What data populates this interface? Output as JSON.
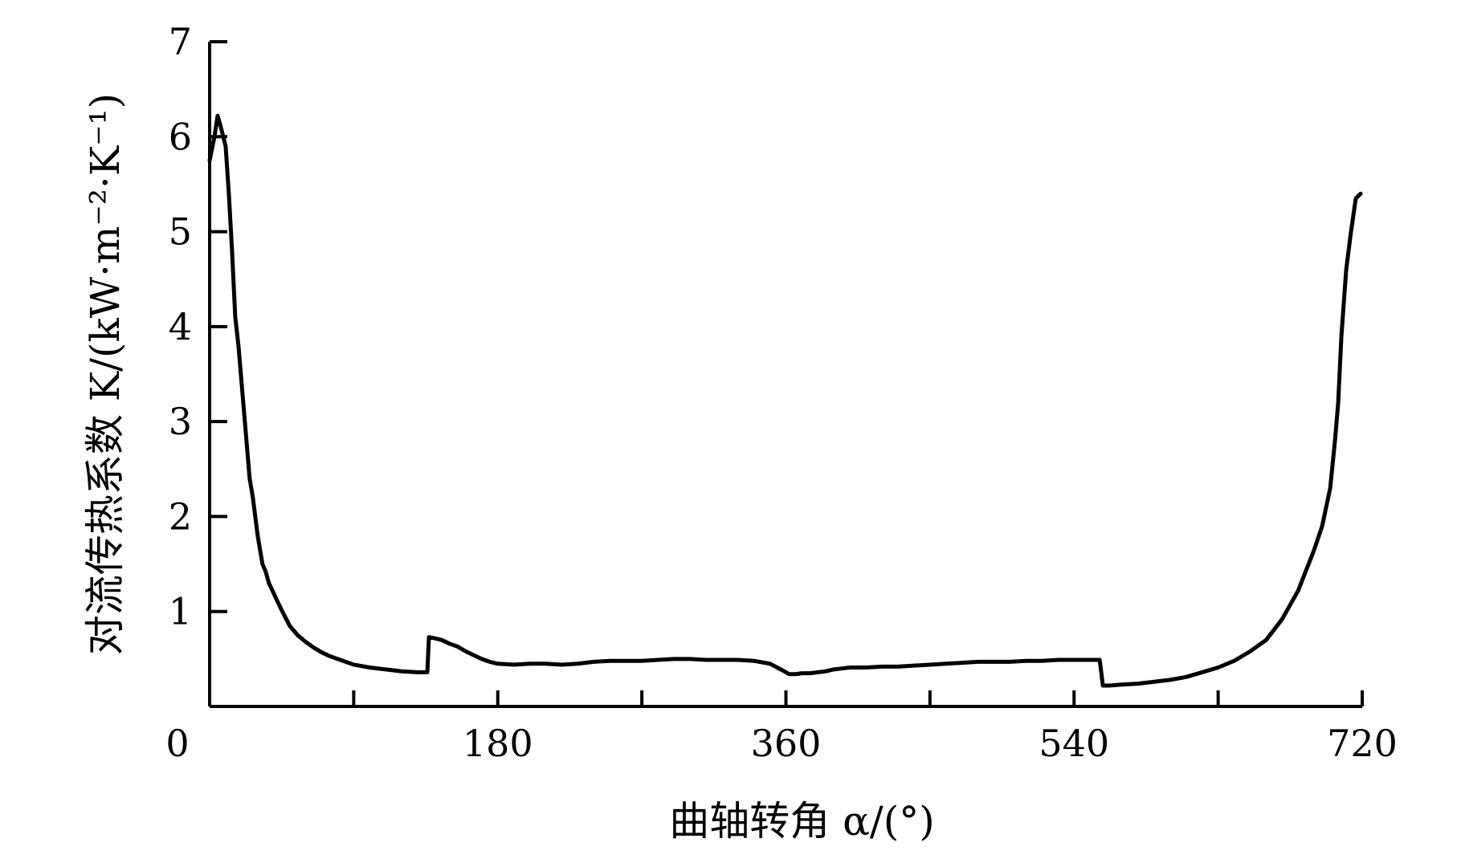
{
  "chart_data": {
    "type": "line",
    "title": "",
    "xlabel": "曲轴转角 α/(°)",
    "ylabel": "对流传热系数 K/(kW·m⁻²·K⁻¹)",
    "xlim": [
      0,
      720
    ],
    "ylim": [
      0,
      7
    ],
    "x_ticks": [
      0,
      90,
      180,
      270,
      360,
      450,
      540,
      630,
      720
    ],
    "x_tick_labels": [
      "0",
      "180",
      "360",
      "540",
      "720"
    ],
    "y_ticks": [
      1,
      2,
      3,
      4,
      5,
      6,
      7
    ],
    "y_tick_labels": [
      "1",
      "2",
      "3",
      "4",
      "5",
      "6",
      "7"
    ],
    "grid": false,
    "series": [
      {
        "color": "#000000",
        "x": [
          0,
          3,
          5,
          7,
          10,
          12,
          14,
          16,
          18,
          22,
          25,
          27,
          30,
          33,
          35,
          37,
          42,
          46,
          50,
          55,
          60,
          65,
          70,
          75,
          80,
          85,
          90,
          100,
          110,
          120,
          130,
          136,
          137,
          140,
          145,
          150,
          155,
          160,
          165,
          170,
          175,
          180,
          190,
          200,
          210,
          220,
          230,
          240,
          250,
          260,
          270,
          280,
          290,
          300,
          310,
          320,
          330,
          340,
          350,
          359,
          362,
          366,
          370,
          375,
          380,
          385,
          390,
          395,
          400,
          410,
          420,
          430,
          440,
          450,
          460,
          470,
          480,
          490,
          500,
          510,
          520,
          530,
          540,
          550,
          556,
          558,
          562,
          570,
          580,
          590,
          600,
          610,
          620,
          630,
          640,
          650,
          660,
          670,
          680,
          690,
          695,
          700,
          703,
          705,
          707,
          710,
          713,
          716,
          719
        ],
        "y": [
          5.75,
          6.0,
          6.22,
          6.1,
          5.9,
          5.4,
          4.8,
          4.1,
          3.8,
          3.0,
          2.4,
          2.2,
          1.8,
          1.5,
          1.42,
          1.3,
          1.12,
          0.98,
          0.85,
          0.75,
          0.68,
          0.62,
          0.57,
          0.53,
          0.5,
          0.47,
          0.44,
          0.41,
          0.39,
          0.37,
          0.36,
          0.36,
          0.73,
          0.72,
          0.7,
          0.66,
          0.63,
          0.58,
          0.54,
          0.5,
          0.47,
          0.45,
          0.44,
          0.45,
          0.45,
          0.44,
          0.45,
          0.47,
          0.48,
          0.48,
          0.48,
          0.49,
          0.5,
          0.5,
          0.49,
          0.49,
          0.49,
          0.48,
          0.45,
          0.37,
          0.34,
          0.34,
          0.35,
          0.35,
          0.36,
          0.37,
          0.39,
          0.4,
          0.41,
          0.41,
          0.42,
          0.42,
          0.43,
          0.44,
          0.45,
          0.46,
          0.47,
          0.47,
          0.47,
          0.48,
          0.48,
          0.49,
          0.49,
          0.49,
          0.49,
          0.22,
          0.22,
          0.23,
          0.24,
          0.26,
          0.28,
          0.31,
          0.36,
          0.41,
          0.48,
          0.58,
          0.7,
          0.92,
          1.22,
          1.65,
          1.9,
          2.3,
          2.8,
          3.2,
          3.9,
          4.6,
          5.0,
          5.35,
          5.4
        ]
      }
    ]
  }
}
